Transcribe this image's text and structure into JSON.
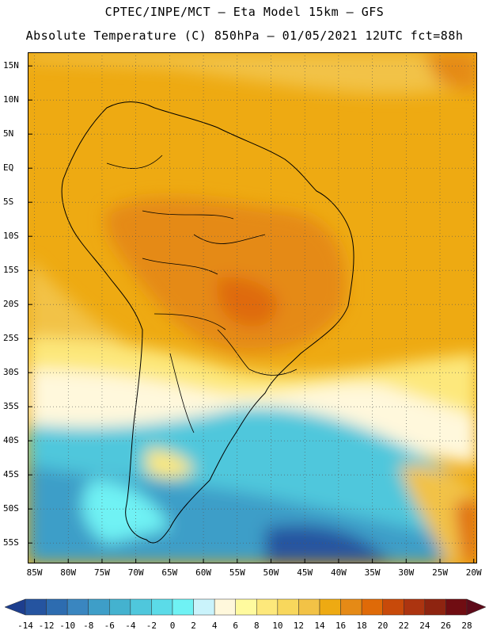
{
  "header": {
    "line1": "CPTEC/INPE/MCT –  Eta Model 15km – GFS",
    "line2": "Absolute Temperature (C) 850hPa – 01/05/2021 12UTC fct=88h"
  },
  "map": {
    "lat_labels": [
      "15N",
      "10N",
      "5N",
      "EQ",
      "5S",
      "10S",
      "15S",
      "20S",
      "25S",
      "30S",
      "35S",
      "40S",
      "45S",
      "50S",
      "55S"
    ],
    "lat_values": [
      15,
      10,
      5,
      0,
      -5,
      -10,
      -15,
      -20,
      -25,
      -30,
      -35,
      -40,
      -45,
      -50,
      -55
    ],
    "lon_labels": [
      "85W",
      "80W",
      "75W",
      "70W",
      "65W",
      "60W",
      "55W",
      "50W",
      "45W",
      "40W",
      "35W",
      "30W",
      "25W",
      "20W"
    ],
    "lon_values": [
      -85,
      -80,
      -75,
      -70,
      -65,
      -60,
      -55,
      -50,
      -45,
      -40,
      -35,
      -30,
      -25,
      -20
    ],
    "lat_range": [
      -58,
      17
    ],
    "lon_range": [
      -86,
      -19.5
    ],
    "gridlines": true
  },
  "colorbar": {
    "labels": [
      "-14",
      "-12",
      "-10",
      "-8",
      "-6",
      "-4",
      "-2",
      "0",
      "2",
      "4",
      "6",
      "8",
      "10",
      "12",
      "14",
      "16",
      "18",
      "20",
      "22",
      "24",
      "26",
      "28"
    ],
    "colors": [
      "#1d3e8e",
      "#2554a0",
      "#2d6cb0",
      "#3a86c0",
      "#3e9ec8",
      "#44b2cf",
      "#4fc7dc",
      "#5bdbe8",
      "#6ff2f4",
      "#caf3fb",
      "#fff8dc",
      "#fffa9e",
      "#fde87b",
      "#f8d75c",
      "#f2c246",
      "#eeaa12",
      "#e58a16",
      "#df6a08",
      "#c84a0a",
      "#ac3410",
      "#8e2410",
      "#700d12",
      "#5e0b1a"
    ]
  }
}
